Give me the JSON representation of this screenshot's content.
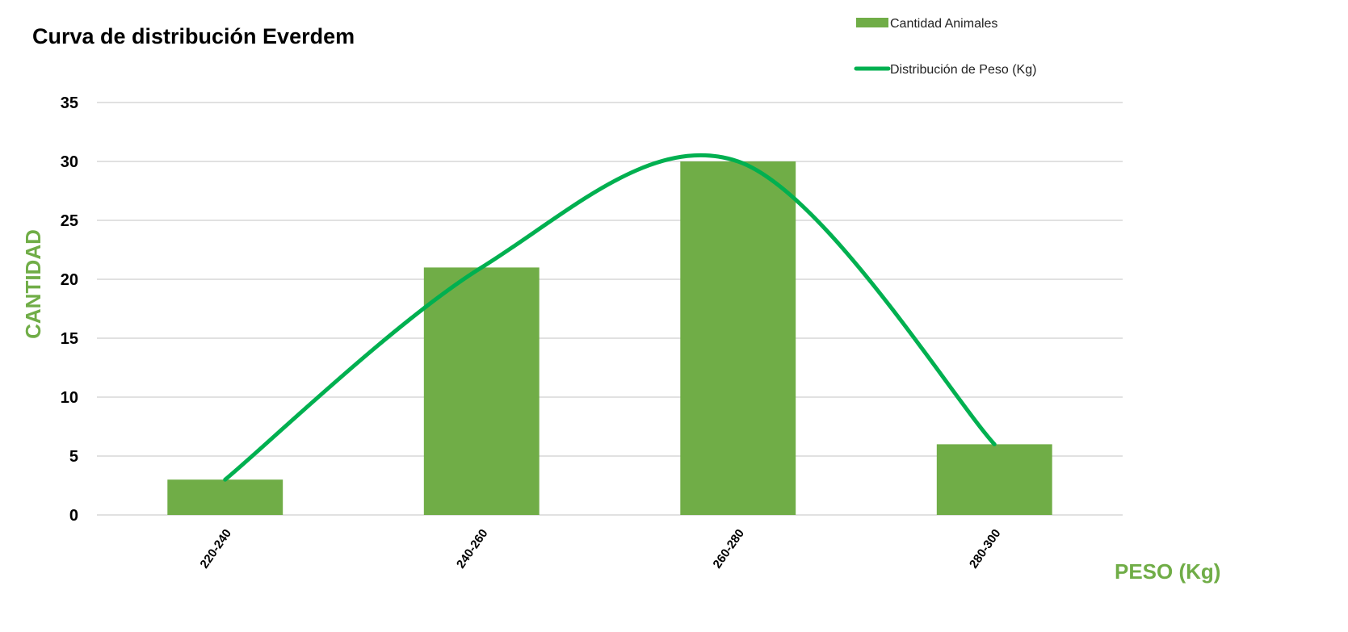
{
  "chart_data": {
    "type": "bar",
    "title": "Curva de distribución Everdem",
    "xlabel": "PESO (Kg)",
    "ylabel": "CANTIDAD",
    "categories": [
      "220-240",
      "240-260",
      "260-280",
      "280-300"
    ],
    "ylim": [
      0,
      35
    ],
    "yticks": [
      0,
      5,
      10,
      15,
      20,
      25,
      30,
      35
    ],
    "grid": true,
    "legend_position": "top-right",
    "series": [
      {
        "name": "Cantidad Animales",
        "type": "bar",
        "values": [
          3,
          21,
          30,
          6
        ],
        "color": "#70ad47"
      },
      {
        "name": "Distribución de Peso (Kg)",
        "type": "line",
        "smooth": true,
        "values": [
          3,
          21,
          30,
          6
        ],
        "color": "#00b050"
      }
    ]
  }
}
